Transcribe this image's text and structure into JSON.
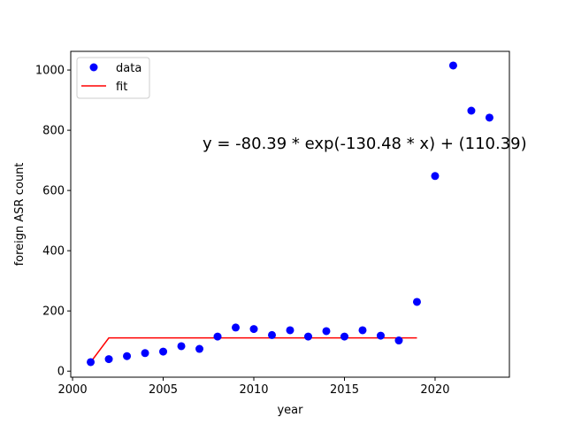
{
  "chart_data": {
    "type": "scatter",
    "xlabel": "year",
    "ylabel": "foreign ASR count",
    "xlim": [
      1999.9,
      2024.1
    ],
    "ylim": [
      -20,
      1062
    ],
    "xticks": [
      2000,
      2005,
      2010,
      2015,
      2020
    ],
    "yticks": [
      0,
      200,
      400,
      600,
      800,
      1000
    ],
    "legend": {
      "position": "top-left",
      "entries": [
        "data",
        "fit"
      ]
    },
    "annotation": "y = -80.39 * exp(-130.48 * x) + (110.39)",
    "series": [
      {
        "name": "data",
        "kind": "scatter",
        "color": "#0000ff",
        "x": [
          2001,
          2002,
          2003,
          2004,
          2005,
          2006,
          2007,
          2008,
          2009,
          2010,
          2011,
          2012,
          2013,
          2014,
          2015,
          2016,
          2017,
          2018,
          2019,
          2020,
          2021,
          2022,
          2023
        ],
        "y": [
          30,
          40,
          50,
          60,
          65,
          83,
          74,
          115,
          145,
          140,
          120,
          136,
          115,
          133,
          115,
          136,
          118,
          102,
          230,
          648,
          1015,
          865,
          842
        ]
      },
      {
        "name": "fit",
        "kind": "line",
        "color": "#ff0000",
        "x": [
          2001,
          2002,
          2003,
          2004,
          2005,
          2006,
          2007,
          2008,
          2009,
          2010,
          2011,
          2012,
          2013,
          2014,
          2015,
          2016,
          2017,
          2018,
          2019
        ],
        "y": [
          30,
          110.39,
          110.39,
          110.39,
          110.39,
          110.39,
          110.39,
          110.39,
          110.39,
          110.39,
          110.39,
          110.39,
          110.39,
          110.39,
          110.39,
          110.39,
          110.39,
          110.39,
          110.39
        ]
      }
    ]
  }
}
